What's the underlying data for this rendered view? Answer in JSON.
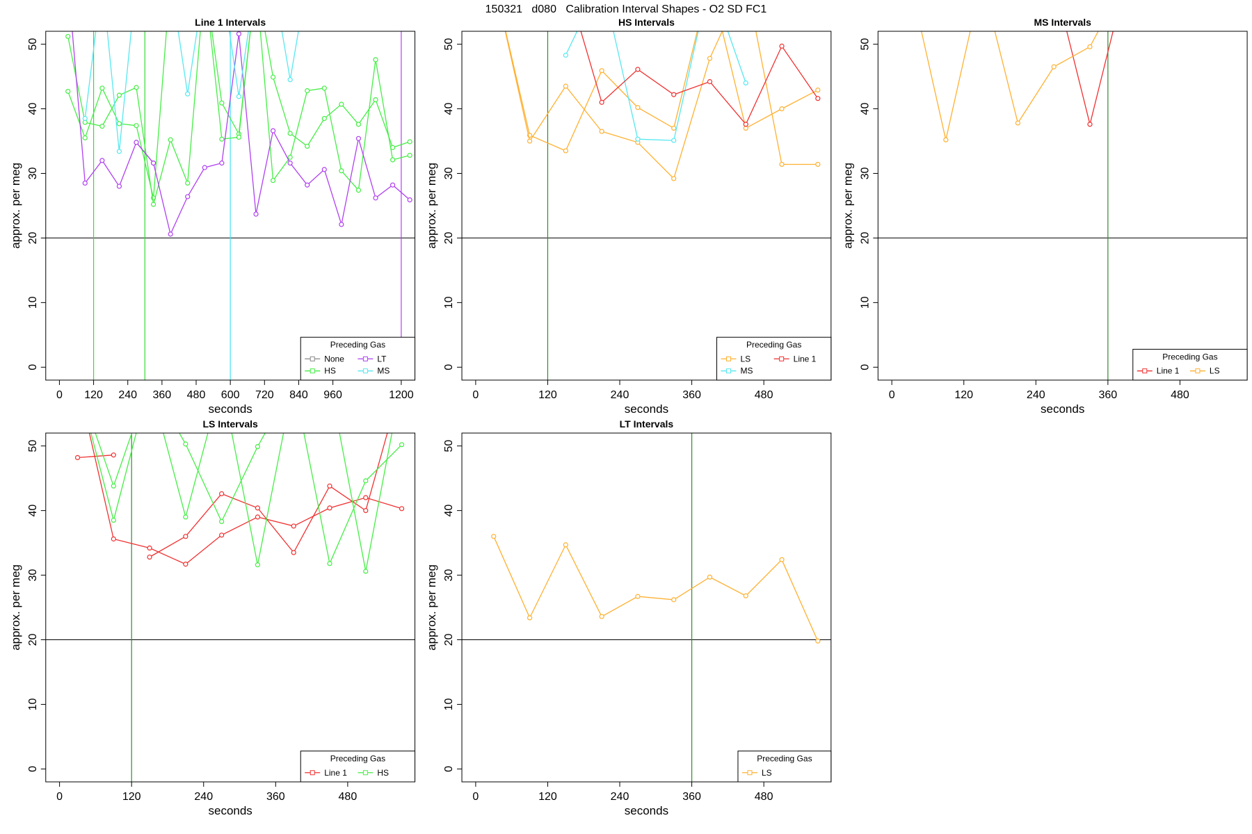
{
  "title": "150321   d080   Calibration Interval Shapes - O2 SD FC1",
  "chart_data": [
    {
      "type": "line",
      "title": "Line 1 Intervals",
      "xlabel": "seconds",
      "ylabel": "approx. per meg",
      "xlim": [
        -48,
        1248
      ],
      "ylim": [
        -2,
        52
      ],
      "xticks": [
        0,
        120,
        240,
        360,
        480,
        600,
        720,
        840,
        960,
        1200
      ],
      "yticks": [
        0,
        10,
        20,
        30,
        40,
        50
      ],
      "hline": 20,
      "hline_color": "#000000",
      "vlines": [
        {
          "x": 120,
          "color": "#33dd33"
        },
        {
          "x": 300,
          "color": "#33dd33"
        },
        {
          "x": 600,
          "color": "#44e4f0"
        },
        {
          "x": 1200,
          "color": "#b040f0"
        }
      ],
      "legend_title": "Preceding Gas",
      "legend": "bottomright",
      "legend_ncol": 2,
      "series": [
        {
          "name": "None",
          "color": "#888888",
          "x": [
            30,
            90,
            150,
            210,
            270,
            330,
            390,
            450,
            510,
            570,
            630,
            690,
            750,
            810,
            870,
            930,
            990,
            1050,
            1110,
            1170,
            1230
          ],
          "lines": [
            [
              null,
              null,
              null,
              null,
              34.8,
              31.6,
              null,
              null,
              null,
              null,
              null,
              null,
              null,
              null,
              null,
              null,
              null,
              null,
              null,
              null,
              null
            ]
          ]
        },
        {
          "name": "HS",
          "color": "#44ee44",
          "x": [
            30,
            90,
            150,
            210,
            270,
            330,
            390,
            450,
            510,
            570,
            630,
            690,
            750,
            810,
            870,
            930,
            990,
            1050,
            1110,
            1170,
            1230
          ],
          "lines": [
            [
              42.7,
              35.5,
              43.2,
              37.7,
              37.4,
              26.2,
              60,
              60,
              60,
              40.9,
              36.1,
              60,
              28.9,
              32.5,
              42.8,
              43.2,
              30.4,
              27.4,
              47.6,
              32.1,
              32.8
            ],
            [
              51.2,
              37.9,
              37.3,
              42.1,
              43.3,
              25.2,
              35.2,
              28.5,
              60,
              35.3,
              35.6,
              60,
              44.9,
              36.2,
              34.2,
              38.5,
              40.7,
              37.6,
              41.4,
              34.0,
              34.9
            ]
          ]
        },
        {
          "name": "LT",
          "color": "#b040f0",
          "x": [
            30,
            90,
            150,
            210,
            270,
            330,
            390,
            450,
            510,
            570,
            630,
            690,
            750,
            810,
            870,
            930,
            990,
            1050,
            1110,
            1170,
            1230
          ],
          "lines": [
            [
              60,
              28.5,
              32.0,
              28.0,
              34.8,
              31.6,
              20.6,
              26.4,
              30.9,
              31.6,
              51.6,
              23.7,
              36.6,
              31.6,
              28.2,
              30.6,
              22.1,
              35.4,
              26.2,
              28.2,
              25.9
            ]
          ]
        },
        {
          "name": "MS",
          "color": "#55e8f0",
          "x": [
            30,
            90,
            150,
            210,
            270,
            330,
            390,
            450,
            510,
            570,
            630,
            690,
            750,
            810,
            870,
            930,
            990,
            1050,
            1110,
            1170,
            1230
          ],
          "lines": [
            [
              null,
              38.5,
              60,
              33.4,
              60,
              60,
              60,
              42.3,
              60,
              60,
              41.9,
              60,
              60,
              44.5,
              60,
              null,
              null,
              null,
              null,
              null,
              null
            ]
          ]
        }
      ]
    },
    {
      "type": "line",
      "title": "HS Intervals",
      "xlabel": "seconds",
      "ylabel": "approx. per meg",
      "xlim": [
        -23,
        592
      ],
      "ylim": [
        -2,
        52
      ],
      "xticks": [
        0,
        120,
        240,
        360,
        480
      ],
      "yticks": [
        0,
        10,
        20,
        30,
        40,
        50
      ],
      "hline": 20,
      "hline_color": "#000000",
      "vlines": [
        {
          "x": 120,
          "color": "#2e8b2e"
        }
      ],
      "legend_title": "Preceding Gas",
      "legend": "bottomright",
      "legend_ncol": 2,
      "series": [
        {
          "name": "LS",
          "color": "#ffb030",
          "x": [
            30,
            90,
            150,
            210,
            270,
            330,
            390,
            450,
            510,
            570
          ],
          "lines": [
            [
              60,
              35.9,
              33.5,
              45.9,
              40.2,
              37.0,
              60,
              37.0,
              40.0,
              42.9
            ],
            [
              60,
              35.0,
              43.5,
              36.5,
              34.8,
              29.2,
              47.8,
              60,
              31.4,
              31.4
            ]
          ]
        },
        {
          "name": "MS",
          "color": "#55e8f0",
          "x": [
            30,
            90,
            150,
            210,
            270,
            330,
            390,
            450,
            510,
            570
          ],
          "lines": [
            [
              null,
              null,
              48.3,
              60,
              35.3,
              35.1,
              60,
              44.0,
              null,
              null
            ]
          ]
        },
        {
          "name": "Line 1",
          "color": "#f03030",
          "x": [
            30,
            90,
            150,
            210,
            270,
            330,
            390,
            450,
            510,
            570
          ],
          "lines": [
            [
              null,
              null,
              60,
              41.0,
              46.1,
              42.2,
              44.2,
              37.6,
              49.7,
              41.6
            ]
          ]
        }
      ]
    },
    {
      "type": "line",
      "title": "MS Intervals",
      "xlabel": "seconds",
      "ylabel": "approx. per meg",
      "xlim": [
        -23,
        592
      ],
      "ylim": [
        -2,
        52
      ],
      "xticks": [
        0,
        120,
        240,
        360,
        480
      ],
      "yticks": [
        0,
        10,
        20,
        30,
        40,
        50
      ],
      "hline": 20,
      "hline_color": "#000000",
      "vlines": [
        {
          "x": 360,
          "color": "#2e8b2e"
        }
      ],
      "legend_title": "Preceding Gas",
      "legend": "bottomright",
      "legend_ncol": 2,
      "series": [
        {
          "name": "Line 1",
          "color": "#f03030",
          "x": [
            30,
            90,
            150,
            210,
            270,
            330,
            390
          ],
          "lines": [
            [
              null,
              null,
              null,
              null,
              60,
              37.6,
              60
            ]
          ]
        },
        {
          "name": "LS",
          "color": "#ffb030",
          "x": [
            30,
            90,
            150,
            210,
            270,
            330,
            390
          ],
          "lines": [
            [
              60,
              35.2,
              60,
              37.8,
              46.5,
              49.6,
              60
            ]
          ]
        }
      ]
    },
    {
      "type": "line",
      "title": "LS Intervals",
      "xlabel": "seconds",
      "ylabel": "approx. per meg",
      "xlim": [
        -23,
        592
      ],
      "ylim": [
        -2,
        52
      ],
      "xticks": [
        0,
        120,
        240,
        360,
        480
      ],
      "yticks": [
        0,
        10,
        20,
        30,
        40,
        50
      ],
      "hline": 20,
      "hline_color": "#000000",
      "vlines": [
        {
          "x": 120,
          "color": "#2e8b2e"
        }
      ],
      "legend_title": "Preceding Gas",
      "legend": "bottomright",
      "legend_ncol": 2,
      "series": [
        {
          "name": "Line 1",
          "color": "#f03030",
          "x": [
            30,
            90,
            150,
            210,
            270,
            330,
            390,
            450,
            510,
            570
          ],
          "lines": [
            [
              48.2,
              48.6,
              null,
              null,
              null,
              null,
              null,
              null,
              null,
              null
            ],
            [
              60,
              35.6,
              34.2,
              31.7,
              36.2,
              39.0,
              37.6,
              40.4,
              42.0,
              40.3
            ],
            [
              null,
              null,
              32.8,
              36.0,
              42.6,
              40.4,
              33.5,
              43.8,
              40.0,
              60
            ]
          ]
        },
        {
          "name": "HS",
          "color": "#44ee44",
          "x": [
            30,
            90,
            150,
            210,
            270,
            330,
            390,
            450,
            510,
            570
          ],
          "lines": [
            [
              60,
              38.5,
              60,
              39.0,
              60,
              31.6,
              60,
              31.8,
              44.6,
              50.2
            ],
            [
              60,
              43.8,
              60,
              50.3,
              38.3,
              49.9,
              60,
              60,
              30.6,
              60
            ]
          ]
        }
      ]
    },
    {
      "type": "line",
      "title": "LT Intervals",
      "xlabel": "seconds",
      "ylabel": "approx. per meg",
      "xlim": [
        -23,
        592
      ],
      "ylim": [
        -2,
        52
      ],
      "xticks": [
        0,
        120,
        240,
        360,
        480
      ],
      "yticks": [
        0,
        10,
        20,
        30,
        40,
        50
      ],
      "hline": 20,
      "hline_color": "#000000",
      "vlines": [
        {
          "x": 360,
          "color": "#2e8b2e"
        }
      ],
      "legend_title": "Preceding Gas",
      "legend": "bottomright",
      "legend_ncol": 1,
      "series": [
        {
          "name": "LS",
          "color": "#ffb030",
          "x": [
            30,
            90,
            150,
            210,
            270,
            330,
            390,
            450,
            510,
            570
          ],
          "lines": [
            [
              36.0,
              23.4,
              34.7,
              23.6,
              26.7,
              26.2,
              29.7,
              26.8,
              32.4,
              19.8
            ]
          ]
        }
      ]
    }
  ]
}
